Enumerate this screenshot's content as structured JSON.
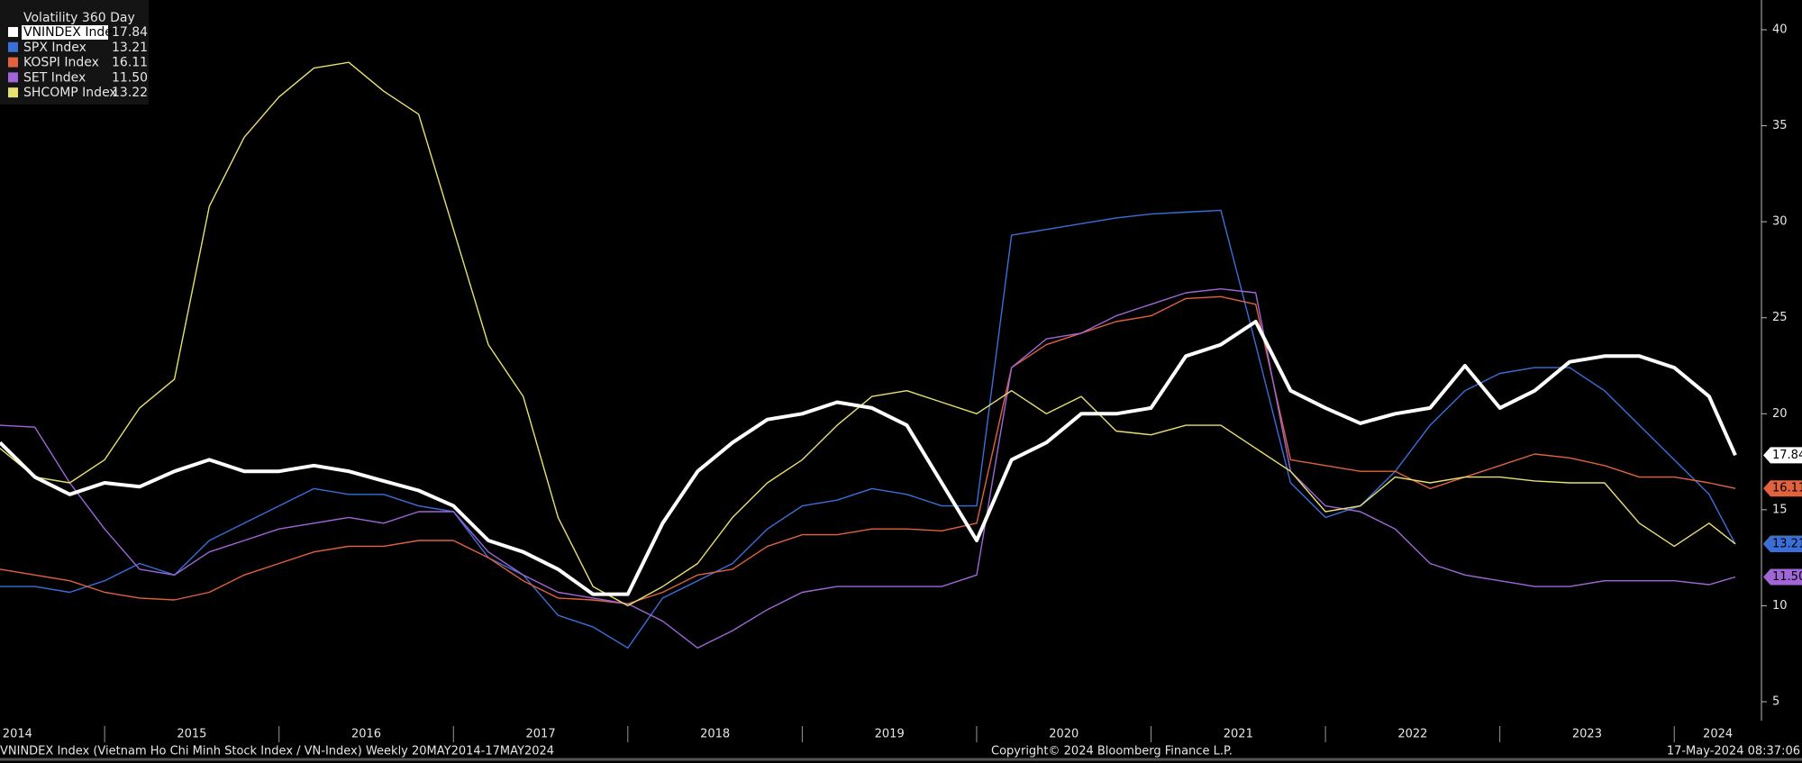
{
  "chart_data": {
    "type": "line",
    "legend_title": "Volatility 360 Day",
    "x": [
      2014.4,
      2014.6,
      2014.8,
      2015.0,
      2015.2,
      2015.4,
      2015.6,
      2015.8,
      2016.0,
      2016.2,
      2016.4,
      2016.6,
      2016.8,
      2017.0,
      2017.2,
      2017.4,
      2017.6,
      2017.8,
      2018.0,
      2018.2,
      2018.4,
      2018.6,
      2018.8,
      2019.0,
      2019.2,
      2019.4,
      2019.6,
      2019.8,
      2020.0,
      2020.2,
      2020.4,
      2020.6,
      2020.8,
      2021.0,
      2021.2,
      2021.4,
      2021.6,
      2021.8,
      2022.0,
      2022.2,
      2022.4,
      2022.6,
      2022.8,
      2023.0,
      2023.2,
      2023.4,
      2023.6,
      2023.8,
      2024.0,
      2024.2,
      2024.35
    ],
    "xlim": [
      2014.4,
      2024.5
    ],
    "xticks": [
      {
        "value": 2014.5,
        "label": "2014"
      },
      {
        "value": 2015.5,
        "label": "2015"
      },
      {
        "value": 2016.5,
        "label": "2016"
      },
      {
        "value": 2017.5,
        "label": "2017"
      },
      {
        "value": 2018.5,
        "label": "2018"
      },
      {
        "value": 2019.5,
        "label": "2019"
      },
      {
        "value": 2020.5,
        "label": "2020"
      },
      {
        "value": 2021.5,
        "label": "2021"
      },
      {
        "value": 2022.5,
        "label": "2022"
      },
      {
        "value": 2023.5,
        "label": "2023"
      },
      {
        "value": 2024.25,
        "label": "2024"
      }
    ],
    "ylim": [
      5,
      40
    ],
    "yticks": [
      5,
      10,
      15,
      20,
      25,
      30,
      35,
      40
    ],
    "series": [
      {
        "name": "VNINDEX Index",
        "color": "#ffffff",
        "legend_value": "17.84",
        "selected": true,
        "values": [
          18.5,
          16.7,
          15.8,
          16.4,
          16.2,
          17.0,
          17.6,
          17.0,
          17.0,
          17.3,
          17.0,
          16.5,
          16.0,
          15.2,
          13.4,
          12.8,
          11.9,
          10.6,
          10.6,
          14.3,
          17.0,
          18.5,
          19.7,
          20.0,
          20.6,
          20.3,
          19.4,
          16.4,
          13.4,
          17.6,
          18.5,
          20.0,
          20.0,
          20.3,
          23.0,
          23.6,
          24.8,
          21.2,
          20.3,
          19.5,
          20.0,
          20.3,
          22.5,
          20.3,
          21.2,
          22.7,
          23.0,
          23.0,
          22.4,
          20.9,
          17.84
        ]
      },
      {
        "name": "SPX Index",
        "color": "#3a6fd8",
        "legend_value": "13.21",
        "selected": false,
        "values": [
          11.0,
          11.0,
          10.7,
          11.3,
          12.2,
          11.6,
          13.4,
          14.3,
          15.2,
          16.1,
          15.8,
          15.8,
          15.2,
          14.9,
          12.5,
          11.6,
          9.5,
          8.9,
          7.8,
          10.4,
          11.3,
          12.2,
          14.0,
          15.2,
          15.5,
          16.1,
          15.8,
          15.2,
          15.2,
          29.3,
          29.6,
          29.9,
          30.2,
          30.4,
          30.5,
          30.6,
          23.6,
          16.4,
          14.6,
          15.2,
          17.0,
          19.4,
          21.2,
          22.1,
          22.4,
          22.4,
          21.2,
          19.4,
          17.6,
          15.8,
          13.21
        ]
      },
      {
        "name": "KOSPI Index",
        "color": "#e0623f",
        "legend_value": "16.11",
        "selected": false,
        "values": [
          11.9,
          11.6,
          11.3,
          10.7,
          10.4,
          10.3,
          10.7,
          11.6,
          12.2,
          12.8,
          13.1,
          13.1,
          13.4,
          13.4,
          12.5,
          11.3,
          10.4,
          10.3,
          10.1,
          10.7,
          11.6,
          11.9,
          13.1,
          13.7,
          13.7,
          14.0,
          14.0,
          13.9,
          14.3,
          22.4,
          23.6,
          24.2,
          24.8,
          25.1,
          26.0,
          26.1,
          25.7,
          17.6,
          17.3,
          17.0,
          17.0,
          16.1,
          16.7,
          17.3,
          17.9,
          17.7,
          17.3,
          16.7,
          16.7,
          16.4,
          16.11
        ]
      },
      {
        "name": "SET Index",
        "color": "#a066d8",
        "legend_value": "11.50",
        "selected": false,
        "values": [
          19.4,
          19.3,
          16.4,
          14.0,
          11.9,
          11.6,
          12.8,
          13.4,
          14.0,
          14.3,
          14.6,
          14.3,
          14.9,
          14.9,
          12.8,
          11.6,
          10.7,
          10.4,
          10.1,
          9.2,
          7.8,
          8.7,
          9.8,
          10.7,
          11.0,
          11.0,
          11.0,
          11.0,
          11.6,
          22.4,
          23.9,
          24.2,
          25.1,
          25.7,
          26.3,
          26.5,
          26.3,
          17.0,
          15.2,
          14.9,
          14.0,
          12.2,
          11.6,
          11.3,
          11.0,
          11.0,
          11.3,
          11.3,
          11.3,
          11.1,
          11.5
        ]
      },
      {
        "name": "SHCOMP Index",
        "color": "#e8e070",
        "legend_value": "13.22",
        "selected": false,
        "values": [
          18.2,
          16.7,
          16.4,
          17.6,
          20.3,
          21.8,
          30.8,
          34.4,
          36.5,
          38.0,
          38.3,
          36.8,
          35.6,
          29.6,
          23.6,
          20.9,
          14.6,
          11.0,
          10.0,
          11.0,
          12.2,
          14.6,
          16.4,
          17.6,
          19.4,
          20.9,
          21.2,
          20.6,
          20.0,
          21.2,
          20.0,
          20.9,
          19.1,
          18.9,
          19.4,
          19.4,
          18.2,
          17.0,
          14.9,
          15.2,
          16.7,
          16.4,
          16.7,
          16.7,
          16.5,
          16.4,
          16.4,
          14.3,
          13.1,
          14.3,
          13.22
        ]
      }
    ],
    "footer_left": "VNINDEX Index (Vietnam Ho Chi Minh Stock Index / VN-Index)  Weekly 20MAY2014-17MAY2024",
    "footer_center": "Copyright© 2024 Bloomberg Finance L.P.",
    "footer_right": "17-May-2024 08:37:06"
  }
}
